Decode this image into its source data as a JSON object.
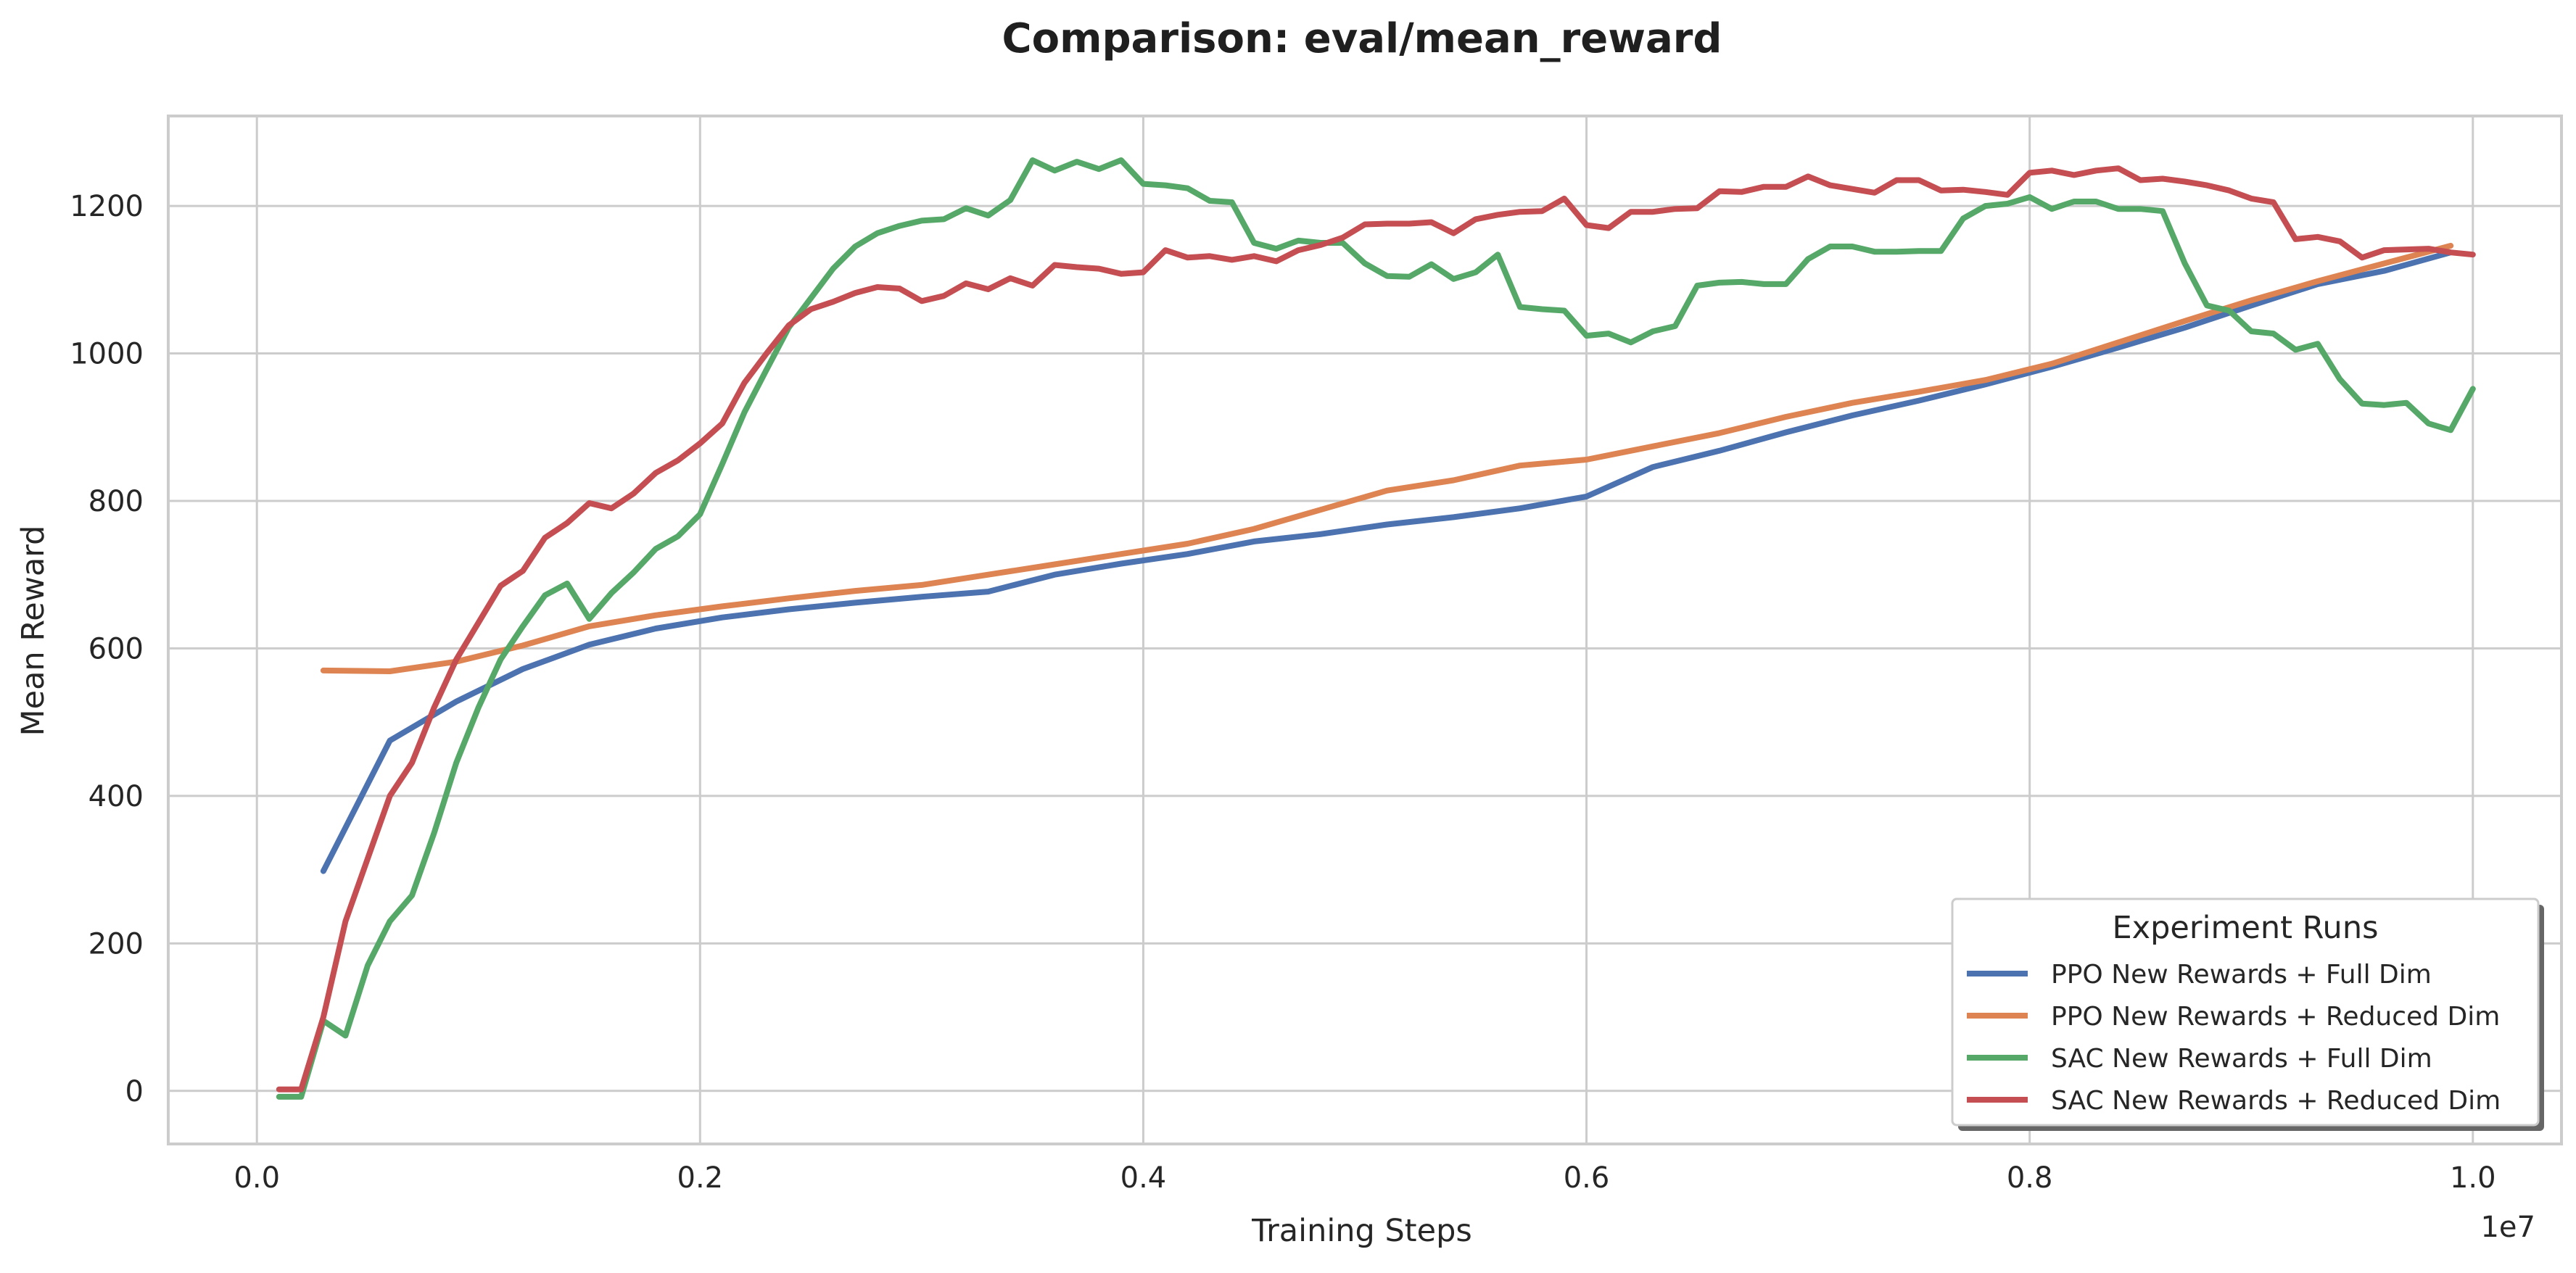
{
  "chart_data": {
    "type": "line",
    "title": "Comparison: eval/mean_reward",
    "xlabel": "Training Steps",
    "ylabel": "Mean Reward",
    "x_offset_label": "1e7",
    "x_scale": 10000000,
    "xlim": [
      -0.04,
      1.04
    ],
    "ylim": [
      -72,
      1322
    ],
    "x_ticks": [
      0.0,
      0.2,
      0.4,
      0.6,
      0.8,
      1.0
    ],
    "x_tick_labels": [
      "0.0",
      "0.2",
      "0.4",
      "0.6",
      "0.8",
      "1.0"
    ],
    "y_ticks": [
      0,
      200,
      400,
      600,
      800,
      1000,
      1200
    ],
    "y_tick_labels": [
      "0",
      "200",
      "400",
      "600",
      "800",
      "1000",
      "1200"
    ],
    "grid": true,
    "legend": {
      "title": "Experiment Runs",
      "position": "bottom-right"
    },
    "series": [
      {
        "name": "PPO New Rewards + Full Dim",
        "color": "#4c72b0",
        "x": [
          0.03,
          0.06,
          0.09,
          0.12,
          0.15,
          0.18,
          0.21,
          0.24,
          0.27,
          0.3,
          0.33,
          0.36,
          0.39,
          0.42,
          0.45,
          0.48,
          0.51,
          0.54,
          0.57,
          0.6,
          0.63,
          0.66,
          0.69,
          0.72,
          0.75,
          0.78,
          0.81,
          0.84,
          0.87,
          0.9,
          0.93,
          0.96,
          0.99
        ],
        "y": [
          298,
          475,
          528,
          572,
          605,
          627,
          642,
          653,
          662,
          670,
          677,
          700,
          715,
          728,
          745,
          755,
          768,
          778,
          790,
          806,
          846,
          868,
          893,
          916,
          936,
          958,
          982,
          1008,
          1035,
          1065,
          1094,
          1112,
          1137
        ]
      },
      {
        "name": "PPO New Rewards + Reduced Dim",
        "color": "#dd8452",
        "x": [
          0.03,
          0.06,
          0.09,
          0.12,
          0.15,
          0.18,
          0.21,
          0.24,
          0.27,
          0.3,
          0.33,
          0.36,
          0.39,
          0.42,
          0.45,
          0.48,
          0.51,
          0.54,
          0.57,
          0.6,
          0.63,
          0.66,
          0.69,
          0.72,
          0.75,
          0.78,
          0.81,
          0.84,
          0.87,
          0.9,
          0.93,
          0.96,
          0.99
        ],
        "y": [
          570,
          569,
          582,
          604,
          630,
          645,
          657,
          668,
          678,
          686,
          700,
          714,
          728,
          742,
          762,
          788,
          814,
          828,
          848,
          856,
          874,
          892,
          914,
          933,
          948,
          964,
          986,
          1015,
          1044,
          1072,
          1098,
          1122,
          1146
        ]
      },
      {
        "name": "SAC New Rewards + Full Dim",
        "color": "#55a868",
        "x": [
          0.01,
          0.02,
          0.03,
          0.04,
          0.05,
          0.06,
          0.07,
          0.08,
          0.09,
          0.1,
          0.11,
          0.12,
          0.13,
          0.14,
          0.15,
          0.16,
          0.17,
          0.18,
          0.19,
          0.2,
          0.21,
          0.22,
          0.23,
          0.24,
          0.25,
          0.26,
          0.27,
          0.28,
          0.29,
          0.3,
          0.31,
          0.32,
          0.33,
          0.34,
          0.35,
          0.36,
          0.37,
          0.38,
          0.39,
          0.4,
          0.41,
          0.42,
          0.43,
          0.44,
          0.45,
          0.46,
          0.47,
          0.48,
          0.49,
          0.5,
          0.51,
          0.52,
          0.53,
          0.54,
          0.55,
          0.56,
          0.57,
          0.58,
          0.59,
          0.6,
          0.61,
          0.62,
          0.63,
          0.64,
          0.65,
          0.66,
          0.67,
          0.68,
          0.69,
          0.7,
          0.71,
          0.72,
          0.73,
          0.74,
          0.75,
          0.76,
          0.77,
          0.78,
          0.79,
          0.8,
          0.81,
          0.82,
          0.83,
          0.84,
          0.85,
          0.86,
          0.87,
          0.88,
          0.89,
          0.9,
          0.91,
          0.92,
          0.93,
          0.94,
          0.95,
          0.96,
          0.97,
          0.98,
          0.99,
          1.0
        ],
        "y": [
          -8,
          -8,
          95,
          75,
          170,
          230,
          265,
          350,
          445,
          520,
          585,
          630,
          672,
          688,
          640,
          675,
          703,
          735,
          752,
          782,
          850,
          920,
          978,
          1035,
          1075,
          1115,
          1145,
          1163,
          1173,
          1180,
          1182,
          1197,
          1187,
          1208,
          1262,
          1248,
          1260,
          1250,
          1262,
          1230,
          1228,
          1224,
          1207,
          1205,
          1150,
          1142,
          1153,
          1150,
          1150,
          1122,
          1105,
          1104,
          1121,
          1101,
          1110,
          1134,
          1063,
          1060,
          1058,
          1024,
          1027,
          1015,
          1030,
          1037,
          1092,
          1096,
          1097,
          1094,
          1094,
          1128,
          1145,
          1145,
          1138,
          1138,
          1139,
          1139,
          1183,
          1200,
          1203,
          1212,
          1196,
          1206,
          1206,
          1196,
          1196,
          1193,
          1122,
          1065,
          1058,
          1030,
          1027,
          1005,
          1013,
          965,
          932,
          930,
          933,
          905,
          896,
          952
        ]
      },
      {
        "name": "SAC New Rewards + Reduced Dim",
        "color": "#c44e52",
        "x": [
          0.01,
          0.02,
          0.03,
          0.04,
          0.05,
          0.06,
          0.07,
          0.08,
          0.09,
          0.1,
          0.11,
          0.12,
          0.13,
          0.14,
          0.15,
          0.16,
          0.17,
          0.18,
          0.19,
          0.2,
          0.21,
          0.22,
          0.23,
          0.24,
          0.25,
          0.26,
          0.27,
          0.28,
          0.29,
          0.3,
          0.31,
          0.32,
          0.33,
          0.34,
          0.35,
          0.36,
          0.37,
          0.38,
          0.39,
          0.4,
          0.41,
          0.42,
          0.43,
          0.44,
          0.45,
          0.46,
          0.47,
          0.48,
          0.49,
          0.5,
          0.51,
          0.52,
          0.53,
          0.54,
          0.55,
          0.56,
          0.57,
          0.58,
          0.59,
          0.6,
          0.61,
          0.62,
          0.63,
          0.64,
          0.65,
          0.66,
          0.67,
          0.68,
          0.69,
          0.7,
          0.71,
          0.72,
          0.73,
          0.74,
          0.75,
          0.76,
          0.77,
          0.78,
          0.79,
          0.8,
          0.81,
          0.82,
          0.83,
          0.84,
          0.85,
          0.86,
          0.87,
          0.88,
          0.89,
          0.9,
          0.91,
          0.92,
          0.93,
          0.94,
          0.95,
          0.96,
          0.97,
          0.98,
          0.99,
          1.0
        ],
        "y": [
          2,
          2,
          100,
          230,
          315,
          400,
          445,
          520,
          585,
          635,
          685,
          705,
          750,
          770,
          797,
          790,
          810,
          838,
          855,
          878,
          905,
          960,
          1000,
          1038,
          1060,
          1070,
          1082,
          1090,
          1088,
          1071,
          1078,
          1095,
          1087,
          1102,
          1092,
          1120,
          1117,
          1115,
          1108,
          1110,
          1140,
          1130,
          1132,
          1127,
          1132,
          1125,
          1140,
          1147,
          1157,
          1175,
          1176,
          1176,
          1178,
          1163,
          1182,
          1188,
          1192,
          1193,
          1210,
          1174,
          1170,
          1192,
          1192,
          1196,
          1197,
          1220,
          1219,
          1226,
          1226,
          1240,
          1228,
          1223,
          1218,
          1235,
          1235,
          1221,
          1222,
          1219,
          1215,
          1245,
          1248,
          1242,
          1248,
          1251,
          1235,
          1237,
          1233,
          1228,
          1221,
          1210,
          1205,
          1155,
          1158,
          1152,
          1130,
          1140,
          1141,
          1142,
          1137,
          1134
        ]
      }
    ]
  }
}
